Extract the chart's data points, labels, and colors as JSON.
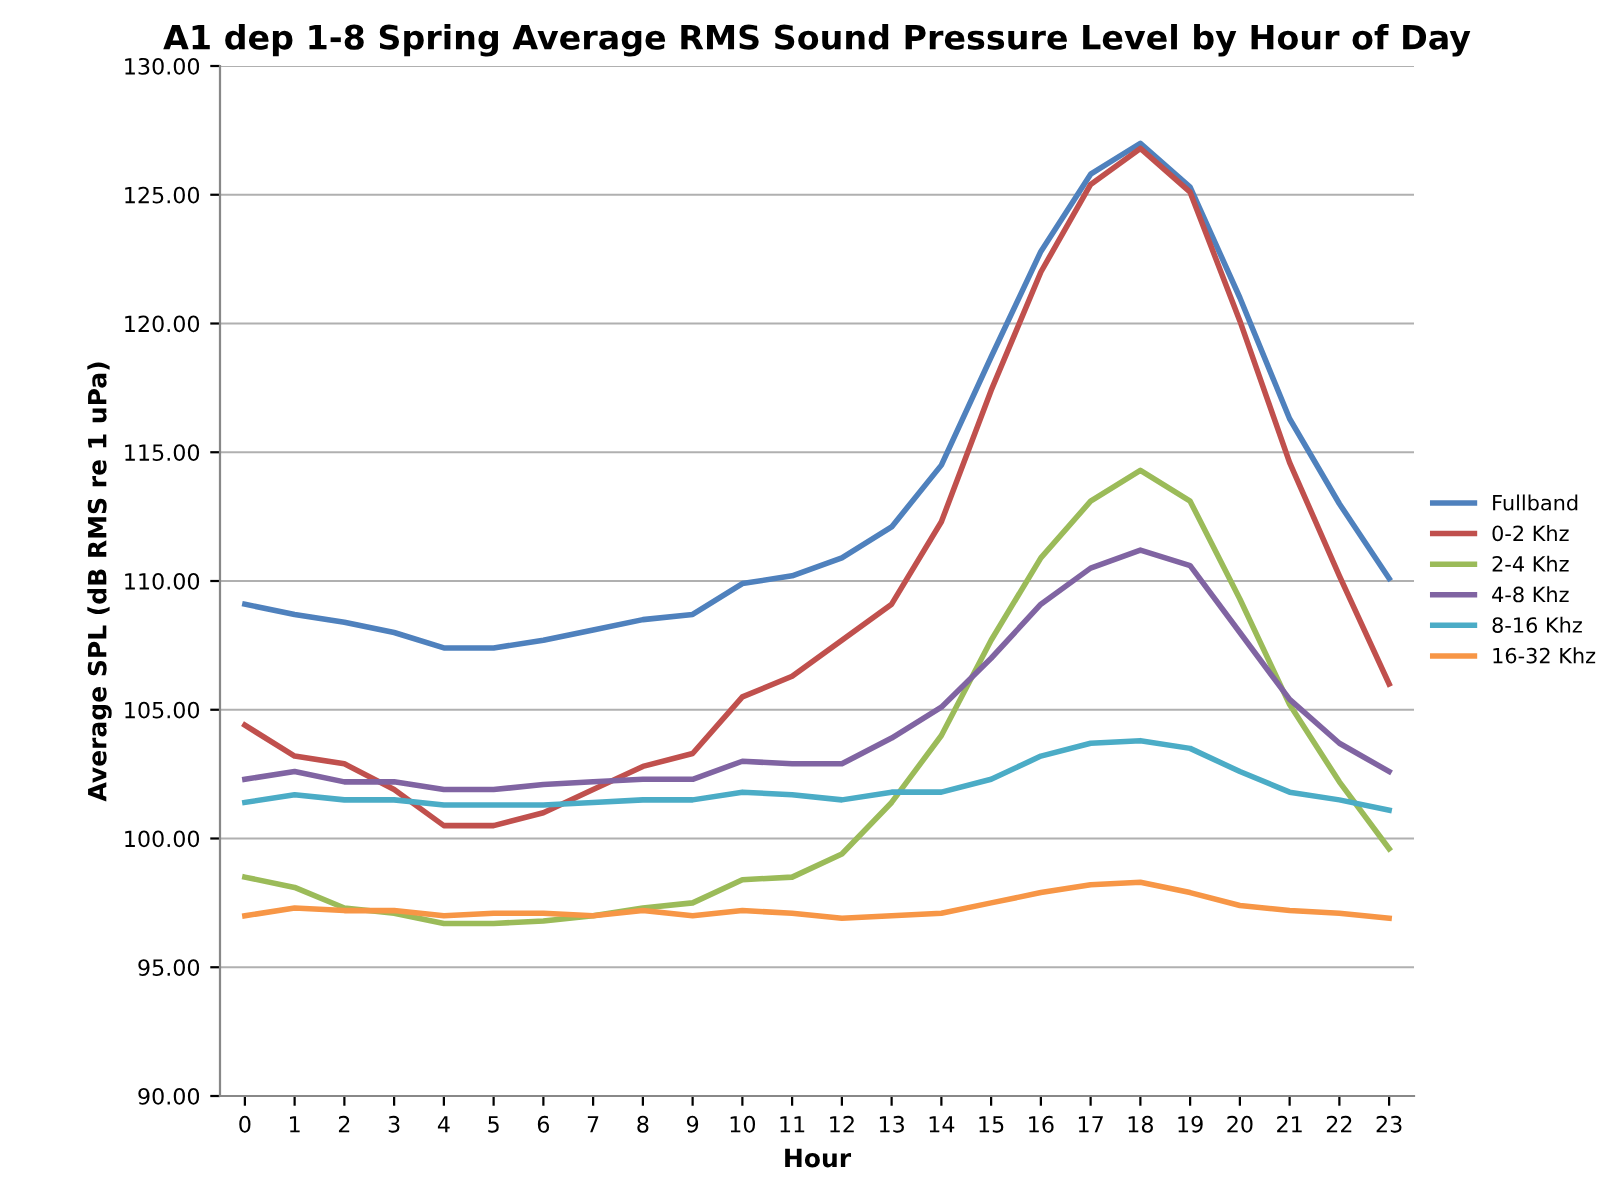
{
  "chart_data": {
    "type": "line",
    "title": "A1 dep 1-8 Spring Average RMS Sound Pressure Level by Hour of Day",
    "xlabel": "Hour",
    "ylabel": "Average SPL (dB RMS re 1 uPa)",
    "categories": [
      "0",
      "1",
      "2",
      "3",
      "4",
      "5",
      "6",
      "7",
      "8",
      "9",
      "10",
      "11",
      "12",
      "13",
      "14",
      "15",
      "16",
      "17",
      "18",
      "19",
      "20",
      "21",
      "22",
      "23"
    ],
    "series": [
      {
        "name": "Fullband",
        "color": "#4f81bd",
        "values": [
          109.1,
          108.7,
          108.4,
          108.0,
          107.4,
          107.4,
          107.7,
          108.1,
          108.5,
          108.7,
          109.9,
          110.2,
          110.9,
          112.1,
          114.5,
          118.7,
          122.8,
          125.8,
          127.0,
          125.3,
          121.0,
          116.3,
          113.0,
          110.1
        ]
      },
      {
        "name": "0-2 Khz",
        "color": "#c0504d",
        "values": [
          104.4,
          103.2,
          102.9,
          101.9,
          100.5,
          100.5,
          101.0,
          101.9,
          102.8,
          103.3,
          105.5,
          106.3,
          107.7,
          109.1,
          112.3,
          117.4,
          122.0,
          125.4,
          126.8,
          125.1,
          120.1,
          114.6,
          110.2,
          106.0
        ]
      },
      {
        "name": "2-4 Khz",
        "color": "#9bbb59",
        "values": [
          98.5,
          98.1,
          97.3,
          97.1,
          96.7,
          96.7,
          96.8,
          97.0,
          97.3,
          97.5,
          98.4,
          98.5,
          99.4,
          101.4,
          104.0,
          107.7,
          110.9,
          113.1,
          114.3,
          113.1,
          109.3,
          105.2,
          102.2,
          99.6
        ]
      },
      {
        "name": "4-8 Khz",
        "color": "#8064a2",
        "values": [
          102.3,
          102.6,
          102.2,
          102.2,
          101.9,
          101.9,
          102.1,
          102.2,
          102.3,
          102.3,
          103.0,
          102.9,
          102.9,
          103.9,
          105.1,
          107.0,
          109.1,
          110.5,
          111.2,
          110.6,
          108.0,
          105.4,
          103.7,
          102.6
        ]
      },
      {
        "name": "8-16 Khz",
        "color": "#4bacc6",
        "values": [
          101.4,
          101.7,
          101.5,
          101.5,
          101.3,
          101.3,
          101.3,
          101.4,
          101.5,
          101.5,
          101.8,
          101.7,
          101.5,
          101.8,
          101.8,
          102.3,
          103.2,
          103.7,
          103.8,
          103.5,
          102.6,
          101.8,
          101.5,
          101.1
        ]
      },
      {
        "name": "16-32 Khz",
        "color": "#f79646",
        "values": [
          97.0,
          97.3,
          97.2,
          97.2,
          97.0,
          97.1,
          97.1,
          97.0,
          97.2,
          97.0,
          97.2,
          97.1,
          96.9,
          97.0,
          97.1,
          97.5,
          97.9,
          98.2,
          98.3,
          97.9,
          97.4,
          97.2,
          97.1,
          96.9
        ]
      }
    ],
    "ylim": [
      90,
      130
    ],
    "yticks": [
      {
        "value": 90,
        "label": "90.00"
      },
      {
        "value": 95,
        "label": "95.00"
      },
      {
        "value": 100,
        "label": "100.00"
      },
      {
        "value": 105,
        "label": "105.00"
      },
      {
        "value": 110,
        "label": "110.00"
      },
      {
        "value": 115,
        "label": "115.00"
      },
      {
        "value": 120,
        "label": "120.00"
      },
      {
        "value": 125,
        "label": "125.00"
      },
      {
        "value": 130,
        "label": "130.00"
      }
    ],
    "grid": "y",
    "legend": "right",
    "marker": "none",
    "line_style": "solid"
  }
}
